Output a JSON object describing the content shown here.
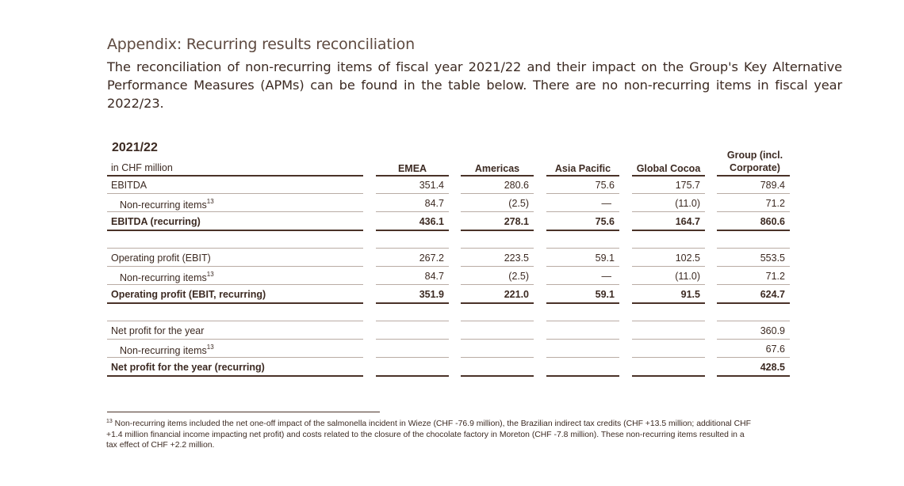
{
  "page": {
    "heading": "Appendix: Recurring results reconciliation",
    "intro": "The reconciliation of non-recurring items of fiscal year 2021/22 and their impact on the Group's Key Alternative Performance Measures (APMs) can be found in the table below. There are no non-recurring items in fiscal year 2022/23."
  },
  "table": {
    "year": "2021/22",
    "unit": "in CHF million",
    "columns": [
      "EMEA",
      "Americas",
      "Asia Pacific",
      "Global Cocoa",
      "Group (incl. Corporate)"
    ],
    "sections": [
      {
        "rows": [
          {
            "label": "EBITDA",
            "sup": "",
            "bold": false,
            "values": [
              "351.4",
              "280.6",
              "75.6",
              "175.7",
              "789.4"
            ]
          },
          {
            "label": "Non-recurring items",
            "sup": "13",
            "bold": false,
            "values": [
              "84.7",
              "(2.5)",
              "—",
              "(11.0)",
              "71.2"
            ]
          },
          {
            "label": "EBITDA (recurring)",
            "sup": "",
            "bold": true,
            "values": [
              "436.1",
              "278.1",
              "75.6",
              "164.7",
              "860.6"
            ]
          }
        ]
      },
      {
        "rows": [
          {
            "label": "Operating profit (EBIT)",
            "sup": "",
            "bold": false,
            "values": [
              "267.2",
              "223.5",
              "59.1",
              "102.5",
              "553.5"
            ]
          },
          {
            "label": "Non-recurring items",
            "sup": "13",
            "bold": false,
            "values": [
              "84.7",
              "(2.5)",
              "—",
              "(11.0)",
              "71.2"
            ]
          },
          {
            "label": "Operating profit (EBIT, recurring)",
            "sup": "",
            "bold": true,
            "values": [
              "351.9",
              "221.0",
              "59.1",
              "91.5",
              "624.7"
            ]
          }
        ]
      },
      {
        "rows": [
          {
            "label": "Net profit for the year",
            "sup": "",
            "bold": false,
            "values": [
              "",
              "",
              "",
              "",
              "360.9"
            ]
          },
          {
            "label": "Non-recurring items",
            "sup": "13",
            "bold": false,
            "values": [
              "",
              "",
              "",
              "",
              "67.6"
            ]
          },
          {
            "label": "Net profit for the year (recurring)",
            "sup": "",
            "bold": true,
            "values": [
              "",
              "",
              "",
              "",
              "428.5"
            ]
          }
        ]
      }
    ]
  },
  "footnote": {
    "marker": "13",
    "text": " Non-recurring items included the net one-off impact of the salmonella incident in Wieze (CHF -76.9 million), the Brazilian indirect tax credits (CHF +13.5 million; additional CHF +1.4 million financial income impacting net profit) and costs related to the closure of the chocolate factory in Moreton (CHF -7.8 million). These non-recurring items resulted in a tax effect of CHF +2.2 million."
  }
}
